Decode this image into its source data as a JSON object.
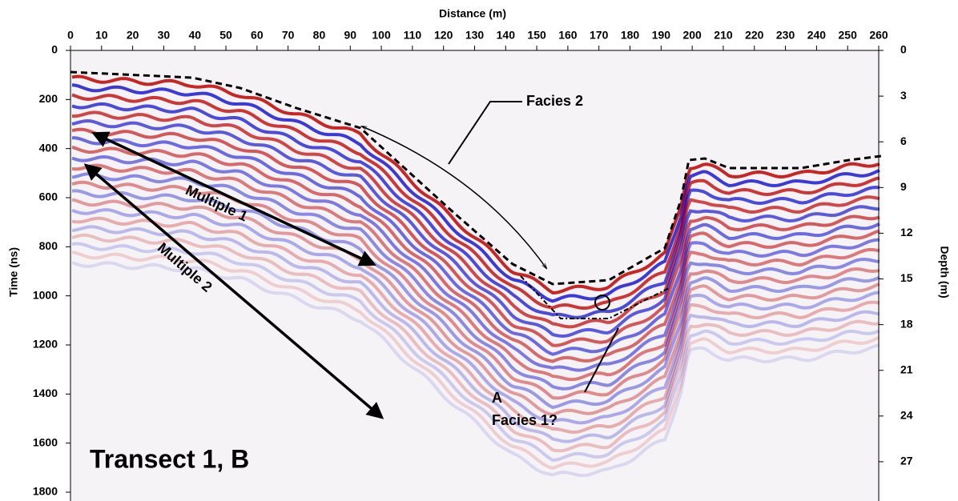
{
  "chart_data": {
    "type": "radargram",
    "xlabel": "Distance (m)",
    "ylabel": "Time (ns)",
    "y2label": "Depth (m)",
    "xlim": [
      0,
      260
    ],
    "xticks": [
      0,
      10,
      20,
      30,
      40,
      50,
      60,
      70,
      80,
      90,
      100,
      110,
      120,
      130,
      140,
      150,
      160,
      170,
      180,
      190,
      200,
      210,
      220,
      230,
      240,
      250,
      260
    ],
    "ylim": [
      0,
      1800
    ],
    "yticks": [
      0,
      200,
      400,
      600,
      800,
      1000,
      1200,
      1400,
      1600,
      1800
    ],
    "y2lim": [
      0,
      29
    ],
    "y2ticks": [
      0,
      3,
      6,
      9,
      12,
      15,
      18,
      21,
      24,
      27
    ],
    "annotations": {
      "facies2": "Facies 2",
      "multiple1": "Multiple 1",
      "multiple2": "Multiple 2",
      "a": "A",
      "facies1": "Facies 1?",
      "transect": "Transect 1, B"
    }
  }
}
